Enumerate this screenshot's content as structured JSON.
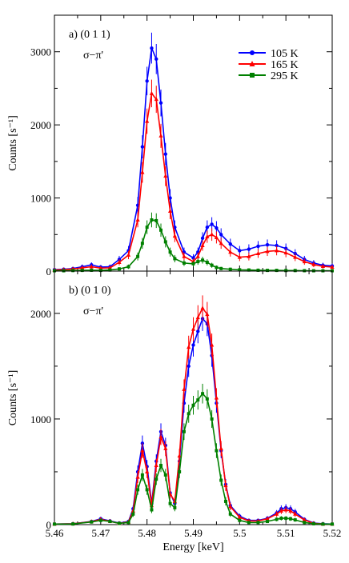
{
  "chart_data": [
    {
      "type": "line",
      "panel_label": "a) (0 1 1)",
      "polarization": "σ−π'",
      "ylabel": "Counts [s⁻¹]",
      "xlabel": "",
      "xlim": [
        5.46,
        5.52
      ],
      "ylim": [
        0,
        3500
      ],
      "yticks": [
        0,
        1000,
        2000,
        3000
      ],
      "xticks": [
        5.46,
        5.47,
        5.48,
        5.49,
        5.5,
        5.51,
        5.52
      ],
      "legend": "top-right",
      "series": [
        {
          "name": "105 K",
          "color": "#0000ff",
          "marker": "circle",
          "x": [
            5.46,
            5.462,
            5.464,
            5.466,
            5.468,
            5.47,
            5.472,
            5.474,
            5.476,
            5.478,
            5.479,
            5.48,
            5.481,
            5.482,
            5.483,
            5.484,
            5.485,
            5.486,
            5.488,
            5.49,
            5.491,
            5.492,
            5.493,
            5.494,
            5.495,
            5.496,
            5.498,
            5.5,
            5.502,
            5.504,
            5.506,
            5.508,
            5.51,
            5.512,
            5.514,
            5.516,
            5.518,
            5.52
          ],
          "y": [
            20,
            25,
            35,
            60,
            85,
            55,
            60,
            160,
            280,
            900,
            1700,
            2600,
            3050,
            2900,
            2300,
            1600,
            1000,
            600,
            260,
            180,
            260,
            450,
            600,
            640,
            590,
            500,
            370,
            280,
            300,
            340,
            360,
            350,
            310,
            240,
            160,
            110,
            80,
            70
          ]
        },
        {
          "name": "165 K",
          "color": "#ff0000",
          "marker": "triangle",
          "x": [
            5.46,
            5.462,
            5.464,
            5.466,
            5.468,
            5.47,
            5.472,
            5.474,
            5.476,
            5.478,
            5.479,
            5.48,
            5.481,
            5.482,
            5.483,
            5.484,
            5.485,
            5.486,
            5.488,
            5.49,
            5.491,
            5.492,
            5.493,
            5.494,
            5.495,
            5.496,
            5.498,
            5.5,
            5.502,
            5.504,
            5.506,
            5.508,
            5.51,
            5.512,
            5.514,
            5.516,
            5.518,
            5.52
          ],
          "y": [
            15,
            20,
            30,
            45,
            60,
            40,
            45,
            120,
            220,
            700,
            1350,
            2050,
            2430,
            2350,
            1850,
            1300,
            820,
            480,
            200,
            130,
            200,
            350,
            470,
            500,
            460,
            380,
            260,
            190,
            200,
            240,
            270,
            280,
            250,
            190,
            130,
            90,
            65,
            55
          ]
        },
        {
          "name": "295 K",
          "color": "#008000",
          "marker": "square",
          "x": [
            5.46,
            5.462,
            5.464,
            5.466,
            5.468,
            5.47,
            5.472,
            5.474,
            5.476,
            5.478,
            5.479,
            5.48,
            5.481,
            5.482,
            5.483,
            5.484,
            5.485,
            5.486,
            5.488,
            5.49,
            5.491,
            5.492,
            5.493,
            5.494,
            5.495,
            5.496,
            5.498,
            5.5,
            5.502,
            5.504,
            5.506,
            5.508,
            5.51,
            5.512,
            5.514,
            5.516,
            5.518,
            5.52
          ],
          "y": [
            5,
            5,
            8,
            10,
            12,
            10,
            15,
            30,
            60,
            200,
            380,
            600,
            700,
            690,
            560,
            400,
            260,
            170,
            110,
            100,
            130,
            150,
            120,
            80,
            50,
            35,
            25,
            18,
            15,
            12,
            10,
            10,
            8,
            8,
            6,
            5,
            5,
            5
          ]
        }
      ]
    },
    {
      "type": "line",
      "panel_label": "b) (0 1 0)",
      "polarization": "σ−π'",
      "ylabel": "Counts [s⁻¹]",
      "xlabel": "Energy [keV]",
      "xlim": [
        5.46,
        5.52
      ],
      "ylim": [
        0,
        2400
      ],
      "yticks": [
        0,
        1000,
        2000
      ],
      "xticks": [
        5.46,
        5.47,
        5.48,
        5.49,
        5.5,
        5.51,
        5.52
      ],
      "xticklabels": [
        "5.46",
        "5.47",
        "5.48",
        "5.49",
        "5.5",
        "5.51",
        "5.52"
      ],
      "series": [
        {
          "name": "105 K",
          "color": "#0000ff",
          "marker": "circle",
          "x": [
            5.46,
            5.464,
            5.468,
            5.47,
            5.472,
            5.474,
            5.476,
            5.477,
            5.478,
            5.479,
            5.48,
            5.481,
            5.482,
            5.483,
            5.484,
            5.485,
            5.486,
            5.487,
            5.488,
            5.489,
            5.49,
            5.491,
            5.492,
            5.493,
            5.494,
            5.495,
            5.496,
            5.497,
            5.498,
            5.5,
            5.502,
            5.504,
            5.506,
            5.508,
            5.509,
            5.51,
            5.511,
            5.512,
            5.514,
            5.516,
            5.518,
            5.52
          ],
          "y": [
            5,
            8,
            30,
            55,
            35,
            15,
            30,
            150,
            500,
            770,
            550,
            200,
            600,
            880,
            750,
            300,
            200,
            600,
            1150,
            1500,
            1700,
            1830,
            1950,
            1900,
            1600,
            1150,
            700,
            380,
            180,
            80,
            40,
            40,
            60,
            110,
            150,
            160,
            150,
            120,
            50,
            15,
            8,
            5
          ]
        },
        {
          "name": "165 K",
          "color": "#ff0000",
          "marker": "triangle",
          "x": [
            5.46,
            5.464,
            5.468,
            5.47,
            5.472,
            5.474,
            5.476,
            5.477,
            5.478,
            5.479,
            5.48,
            5.481,
            5.482,
            5.483,
            5.484,
            5.485,
            5.486,
            5.487,
            5.488,
            5.489,
            5.49,
            5.491,
            5.492,
            5.493,
            5.494,
            5.495,
            5.496,
            5.497,
            5.498,
            5.5,
            5.502,
            5.504,
            5.506,
            5.508,
            5.509,
            5.51,
            5.511,
            5.512,
            5.514,
            5.516,
            5.518,
            5.52
          ],
          "y": [
            5,
            8,
            28,
            50,
            32,
            12,
            25,
            130,
            450,
            700,
            500,
            180,
            560,
            830,
            720,
            290,
            220,
            650,
            1280,
            1680,
            1850,
            1960,
            2050,
            1990,
            1700,
            1200,
            720,
            370,
            170,
            70,
            35,
            35,
            55,
            100,
            130,
            140,
            130,
            100,
            45,
            12,
            6,
            5
          ]
        },
        {
          "name": "295 K",
          "color": "#008000",
          "marker": "square",
          "x": [
            5.46,
            5.464,
            5.468,
            5.47,
            5.472,
            5.474,
            5.476,
            5.477,
            5.478,
            5.479,
            5.48,
            5.481,
            5.482,
            5.483,
            5.484,
            5.485,
            5.486,
            5.487,
            5.488,
            5.489,
            5.49,
            5.491,
            5.492,
            5.493,
            5.494,
            5.495,
            5.496,
            5.497,
            5.498,
            5.5,
            5.502,
            5.504,
            5.506,
            5.508,
            5.509,
            5.51,
            5.511,
            5.512,
            5.514,
            5.516,
            5.518,
            5.52
          ],
          "y": [
            5,
            6,
            25,
            40,
            30,
            12,
            20,
            100,
            330,
            470,
            330,
            140,
            430,
            560,
            470,
            200,
            160,
            500,
            880,
            1050,
            1130,
            1180,
            1240,
            1190,
            1000,
            700,
            420,
            220,
            100,
            40,
            20,
            20,
            30,
            50,
            60,
            60,
            55,
            45,
            20,
            8,
            5,
            5
          ]
        }
      ]
    }
  ]
}
